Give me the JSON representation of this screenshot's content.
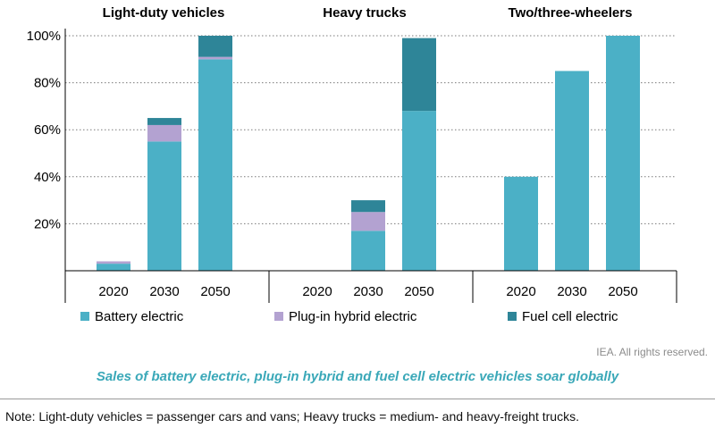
{
  "chart_data": {
    "type": "bar",
    "stacked": true,
    "panels": [
      {
        "title": "Light-duty vehicles",
        "categories": [
          "2020",
          "2030",
          "2050"
        ]
      },
      {
        "title": "Heavy trucks",
        "categories": [
          "2020",
          "2030",
          "2050"
        ]
      },
      {
        "title": "Two/three-wheelers",
        "categories": [
          "2020",
          "2030",
          "2050"
        ]
      }
    ],
    "series": [
      {
        "name": "Battery electric",
        "color": "#4bb0c6",
        "values": [
          [
            3,
            55,
            90
          ],
          [
            0,
            17,
            68
          ],
          [
            40,
            85,
            100
          ]
        ]
      },
      {
        "name": "Plug-in hybrid electric",
        "color": "#b3a2d1",
        "values": [
          [
            1,
            7,
            1
          ],
          [
            0,
            8,
            0
          ],
          [
            0,
            0,
            0
          ]
        ]
      },
      {
        "name": "Fuel cell electric",
        "color": "#2e8598",
        "values": [
          [
            0,
            3,
            9
          ],
          [
            0,
            5,
            31
          ],
          [
            0,
            0,
            0
          ]
        ]
      }
    ],
    "yticks": [
      "20%",
      "40%",
      "60%",
      "80%",
      "100%"
    ],
    "ylim": [
      0,
      100
    ],
    "grid": true,
    "legend": "bottom"
  },
  "rights": "IEA. All rights reserved.",
  "caption": "Sales of battery electric, plug-in hybrid and fuel cell electric vehicles soar globally",
  "note": "Note: Light-duty vehicles = passenger cars and vans; Heavy trucks = medium- and heavy-freight trucks."
}
